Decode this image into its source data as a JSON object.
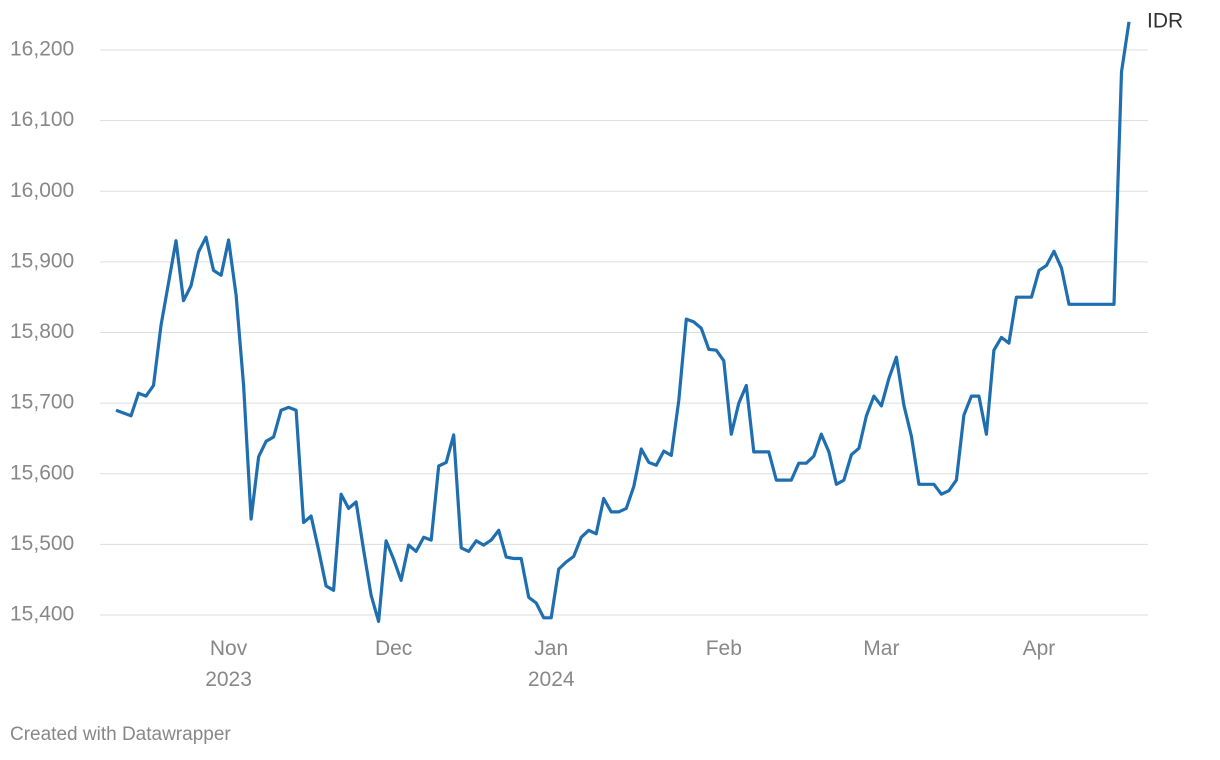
{
  "chart_data": {
    "type": "line",
    "categories": [
      null,
      null,
      null,
      null,
      null,
      null,
      null,
      null,
      null,
      null,
      null,
      null,
      null,
      null,
      null,
      "Nov 2023",
      null,
      null,
      null,
      null,
      null,
      null,
      null,
      null,
      null,
      null,
      null,
      null,
      null,
      null,
      null,
      null,
      null,
      null,
      null,
      null,
      null,
      "Dec",
      null,
      null,
      null,
      null,
      null,
      null,
      null,
      null,
      null,
      null,
      null,
      null,
      null,
      null,
      null,
      null,
      null,
      null,
      null,
      null,
      "Jan 2024",
      null,
      null,
      null,
      null,
      null,
      null,
      null,
      null,
      null,
      null,
      null,
      null,
      null,
      null,
      null,
      null,
      null,
      null,
      null,
      null,
      null,
      null,
      "Feb",
      null,
      null,
      null,
      null,
      null,
      null,
      null,
      null,
      null,
      null,
      null,
      null,
      null,
      null,
      null,
      null,
      null,
      null,
      null,
      null,
      "Mar",
      null,
      null,
      null,
      null,
      null,
      null,
      null,
      null,
      null,
      null,
      null,
      null,
      null,
      null,
      null,
      null,
      null,
      null,
      null,
      null,
      "Apr",
      null,
      null,
      null,
      null,
      null,
      null,
      null,
      null,
      null,
      null,
      null,
      null
    ],
    "series": [
      {
        "name": "IDR",
        "color": "#1f6fb0",
        "values": [
          15690,
          15686,
          15682,
          15714,
          15710,
          15725,
          15810,
          15870,
          15930,
          15845,
          15866,
          15914,
          15935,
          15888,
          15881,
          15931,
          15853,
          15725,
          15536,
          15624,
          15646,
          15652,
          15690,
          15694,
          15690,
          15531,
          15540,
          15492,
          15441,
          15435,
          15571,
          15551,
          15560,
          15492,
          15428,
          15391,
          15505,
          15479,
          15449,
          15499,
          15490,
          15510,
          15506,
          15611,
          15616,
          15655,
          15495,
          15490,
          15505,
          15499,
          15506,
          15520,
          15482,
          15480,
          15480,
          15425,
          15417,
          15396,
          15396,
          15465,
          15475,
          15483,
          15510,
          15520,
          15515,
          15565,
          15546,
          15546,
          15551,
          15582,
          15635,
          15616,
          15612,
          15632,
          15626,
          15704,
          15819,
          15815,
          15806,
          15776,
          15775,
          15760,
          15656,
          15700,
          15725,
          15631,
          15631,
          15631,
          15591,
          15591,
          15591,
          15615,
          15615,
          15625,
          15656,
          15631,
          15585,
          15591,
          15627,
          15636,
          15682,
          15710,
          15696,
          15735,
          15765,
          15697,
          15653,
          15585,
          15585,
          15585,
          15571,
          15576,
          15591,
          15683,
          15710,
          15710,
          15656,
          15775,
          15793,
          15785,
          15850,
          15850,
          15850,
          15888,
          15895,
          15915,
          15891,
          15840,
          15840,
          15840,
          15840,
          15840,
          15840,
          15840,
          16169,
          16240
        ]
      }
    ],
    "ylim": [
      15400,
      16200
    ],
    "yticks": [
      {
        "value": 15400,
        "label": "15,400"
      },
      {
        "value": 15500,
        "label": "15,500"
      },
      {
        "value": 15600,
        "label": "15,600"
      },
      {
        "value": 15700,
        "label": "15,700"
      },
      {
        "value": 15800,
        "label": "15,800"
      },
      {
        "value": 15900,
        "label": "15,900"
      },
      {
        "value": 16000,
        "label": "16,000"
      },
      {
        "value": 16100,
        "label": "16,100"
      },
      {
        "value": 16200,
        "label": "16,200"
      }
    ],
    "grid": true,
    "source": "Created with Datawrapper"
  }
}
